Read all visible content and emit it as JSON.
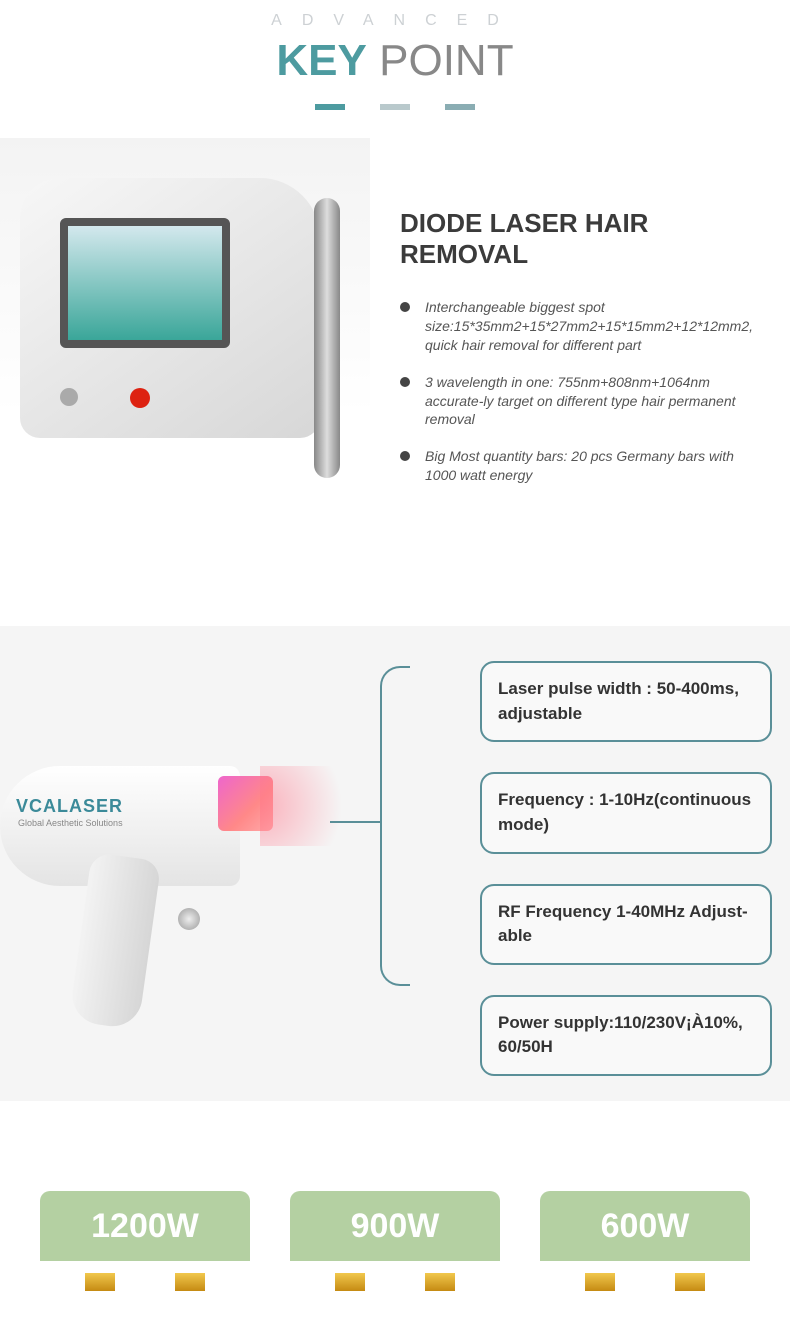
{
  "header": {
    "eyebrow": "ADVANCED",
    "title_accent": "KEY",
    "title_rest": " POINT"
  },
  "divider_colors": [
    "#4d9ba0",
    "#b9c9cc",
    "#8aadb3"
  ],
  "product": {
    "title": "DIODE LASER HAIR REMOVAL",
    "bullets": [
      "Interchangeable biggest spot size:15*35mm2+15*27mm2+15*15mm2+12*12mm2, quick hair removal for different part",
      "3 wavelength in one:  755nm+808nm+1064nm accurate-ly target on different type hair permanent removal",
      "Big Most quantity bars: 20 pcs Germany bars with 1000 watt energy"
    ]
  },
  "brand": {
    "name": "VCALASER",
    "sub": "Global Aesthetic Solutions"
  },
  "specs": [
    "Laser pulse width : 50-400ms, adjustable",
    "Frequency : 1-10Hz(continuous mode)",
    "RF Frequency 1-40MHz Adjust-able",
    "Power supply:110/230V¡À10%, 60/50H"
  ],
  "colors": {
    "accent": "#4d9ba0",
    "spec_border": "#5a8f98",
    "watt_headers": [
      "#b4d0a2",
      "#b4d0a2",
      "#b4d0a2"
    ]
  },
  "watts": [
    "1200W",
    "900W",
    "600W"
  ]
}
